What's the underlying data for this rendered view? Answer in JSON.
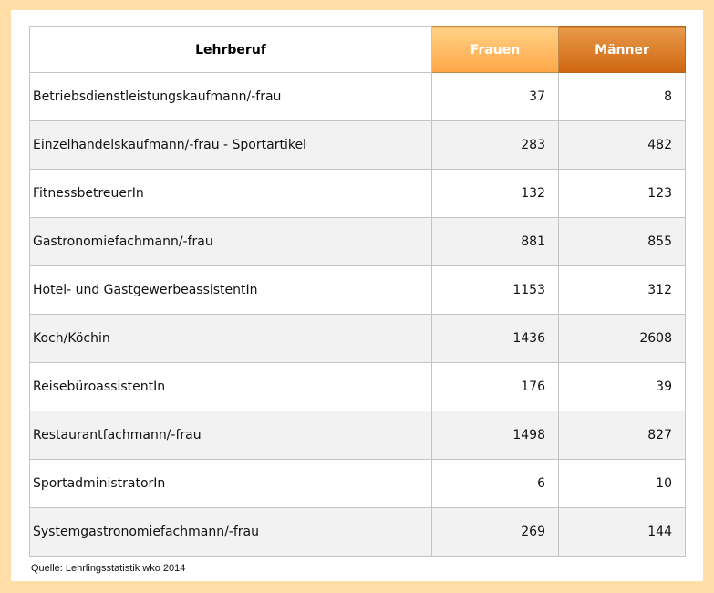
{
  "chart_data": {
    "type": "table",
    "columns": [
      "Lehrberuf",
      "Frauen",
      "Männer"
    ],
    "rows": [
      {
        "label": "Betriebsdienstleistungskaufmann/-frau",
        "frauen": 37,
        "maenner": 8
      },
      {
        "label": "Einzelhandelskaufmann/-frau - Sportartikel",
        "frauen": 283,
        "maenner": 482
      },
      {
        "label": "FitnessbetreuerIn",
        "frauen": 132,
        "maenner": 123
      },
      {
        "label": "Gastronomiefachmann/-frau",
        "frauen": 881,
        "maenner": 855
      },
      {
        "label": "Hotel- und GastgewerbeassistentIn",
        "frauen": 1153,
        "maenner": 312
      },
      {
        "label": "Koch/Köchin",
        "frauen": 1436,
        "maenner": 2608
      },
      {
        "label": "ReisebüroassistentIn",
        "frauen": 176,
        "maenner": 39
      },
      {
        "label": "Restaurantfachmann/-frau",
        "frauen": 1498,
        "maenner": 827
      },
      {
        "label": "SportadministratorIn",
        "frauen": 6,
        "maenner": 10
      },
      {
        "label": "Systemgastronomiefachmann/-frau",
        "frauen": 269,
        "maenner": 144
      }
    ],
    "source": "Quelle: Lehrlingsstatistik wko 2014",
    "colors": {
      "frauen_header": "#FFB55F",
      "maenner_header": "#DB7A25",
      "border": "#FFDEA8"
    }
  }
}
